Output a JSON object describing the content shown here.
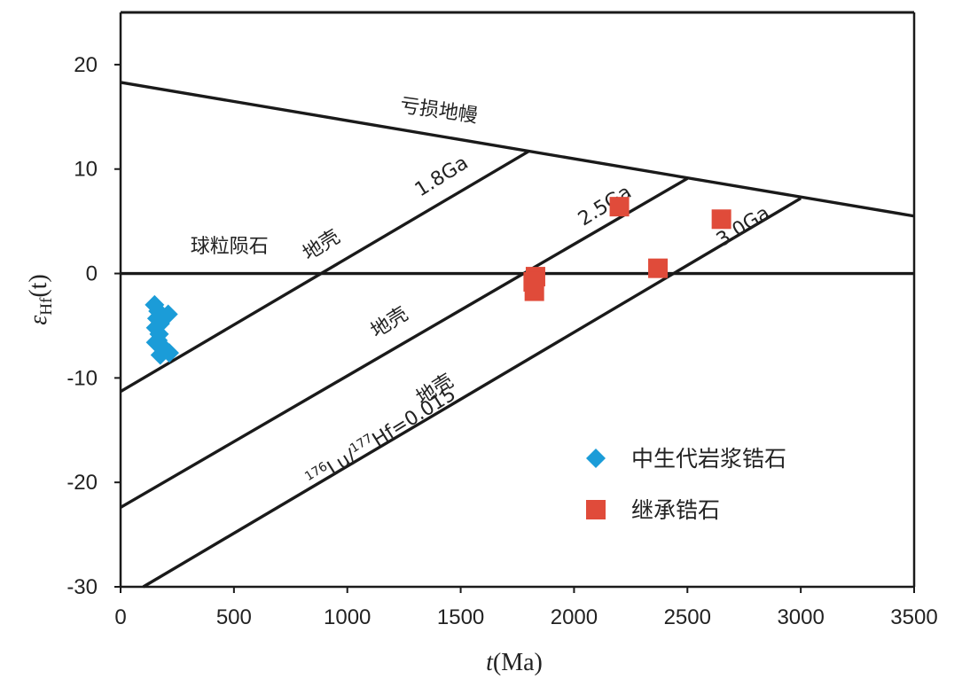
{
  "chart_data": {
    "type": "scatter",
    "xlabel_var": "t",
    "xlabel_unit": "(Ma)",
    "ylabel_var": "ε",
    "ylabel_sub": "Hf",
    "ylabel_arg": "(t)",
    "xlim": [
      0,
      3500
    ],
    "ylim": [
      -30,
      25
    ],
    "x_ticks": [
      0,
      500,
      1000,
      1500,
      2000,
      2500,
      3000,
      3500
    ],
    "y_ticks": [
      -30,
      -20,
      -10,
      0,
      10,
      20
    ],
    "grid": false,
    "legend_position": "bottom-right",
    "reference_lines": [
      {
        "id": "depleted-mantle",
        "points": [
          [
            0,
            18.3
          ],
          [
            3500,
            5.5
          ]
        ]
      },
      {
        "id": "chondrite",
        "points": [
          [
            0,
            0
          ],
          [
            3500,
            0
          ]
        ]
      },
      {
        "id": "crust-1-8ga",
        "points": [
          [
            0,
            -11.3
          ],
          [
            1800,
            11.7
          ]
        ]
      },
      {
        "id": "crust-2-5ga",
        "points": [
          [
            0,
            -22.4
          ],
          [
            2500,
            9.1
          ]
        ]
      },
      {
        "id": "crust-3-0ga",
        "points": [
          [
            100,
            -30
          ],
          [
            3000,
            7.2
          ]
        ]
      }
    ],
    "annotations": [
      {
        "id": "depleted-mantle-label",
        "text": "亏损地幔",
        "x": 1400,
        "y": 15.0,
        "angle": 8
      },
      {
        "id": "chondrite-label",
        "text": "球粒陨石",
        "x": 480,
        "y": 2.0,
        "angle": 0
      },
      {
        "id": "ga18-label",
        "text": "1.8Ga",
        "x": 1430,
        "y": 8.8,
        "angle": -32
      },
      {
        "id": "ga25-label",
        "text": "2.5Ga",
        "x": 2150,
        "y": 6.0,
        "angle": -32
      },
      {
        "id": "ga30-label",
        "text": "3.0Ga",
        "x": 2760,
        "y": 4.0,
        "angle": -32
      },
      {
        "id": "crust-label-1",
        "text": "地壳",
        "x": 900,
        "y": 2.2,
        "angle": -32
      },
      {
        "id": "crust-label-2",
        "text": "地壳",
        "x": 1200,
        "y": -5.2,
        "angle": -32
      },
      {
        "id": "crust-label-3",
        "text": "地壳",
        "x": 1400,
        "y": -11.6,
        "angle": -32
      }
    ],
    "ratio_label": {
      "sup1": "176",
      "part1": "Lu/",
      "sup2": "177",
      "part2": "Hf=0.015",
      "x": 1165,
      "y": -16.2,
      "angle": -32
    },
    "series": [
      {
        "name": "中生代岩浆锆石",
        "marker": "diamond",
        "color": "#1b9cd8",
        "points": [
          [
            150,
            -3.0
          ],
          [
            165,
            -3.6
          ],
          [
            160,
            -4.3
          ],
          [
            210,
            -3.9
          ],
          [
            175,
            -4.8
          ],
          [
            155,
            -5.2
          ],
          [
            170,
            -5.8
          ],
          [
            165,
            -6.4
          ],
          [
            180,
            -6.9
          ],
          [
            155,
            -6.6
          ],
          [
            190,
            -7.3
          ],
          [
            215,
            -7.6
          ],
          [
            175,
            -7.8
          ]
        ]
      },
      {
        "name": "继承锆石",
        "marker": "square",
        "color": "#e04b3a",
        "points": [
          [
            1830,
            -0.3
          ],
          [
            1820,
            -0.8
          ],
          [
            1825,
            -1.7
          ],
          [
            2200,
            6.4
          ],
          [
            2370,
            0.5
          ],
          [
            2650,
            5.2
          ]
        ]
      }
    ]
  }
}
